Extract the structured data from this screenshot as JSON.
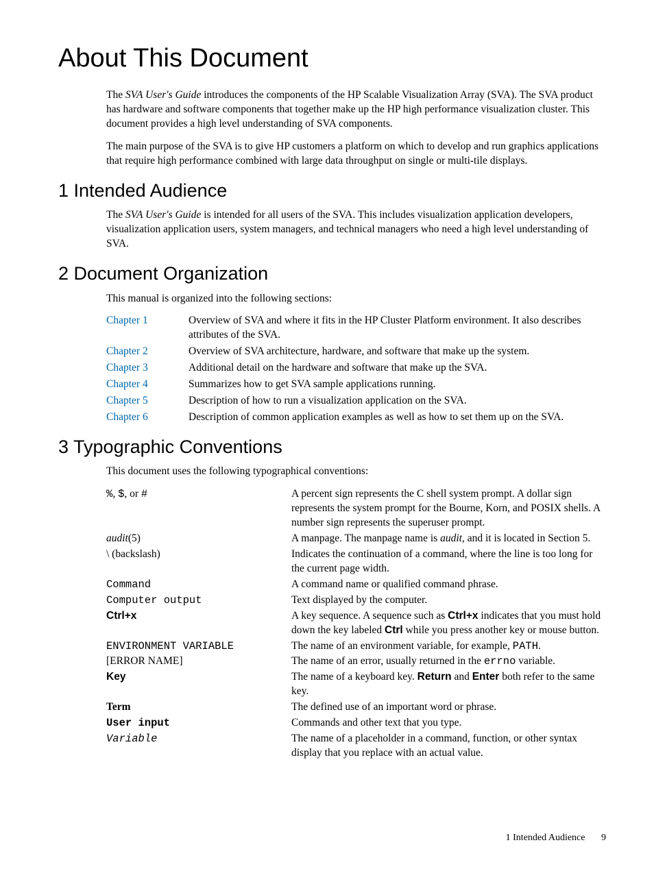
{
  "page": {
    "title": "About This Document",
    "intro_p1_pre": "The ",
    "intro_p1_em": "SVA User's Guide",
    "intro_p1_post": " introduces the components of the HP Scalable Visualization Array (SVA). The SVA product has hardware and software components that together make up the HP high performance visualization cluster. This document provides a high level understanding of SVA components.",
    "intro_p2": "The main purpose of the SVA is to give HP customers a platform on which to develop and run graphics applications that require high performance combined with large data throughput on single or multi-tile displays."
  },
  "sections": {
    "s1": {
      "heading": "1  Intended Audience",
      "p1_pre": "The ",
      "p1_em": "SVA User's Guide",
      "p1_post": " is intended for all users of the SVA. This includes visualization application developers, visualization application users, system managers, and technical managers who need a high level understanding of SVA."
    },
    "s2": {
      "heading": "2  Document Organization",
      "intro": "This manual is organized into the following sections:",
      "chapters": [
        {
          "label": "Chapter 1",
          "desc": "Overview of SVA and where it fits in the HP Cluster Platform environment. It also describes attributes of the SVA."
        },
        {
          "label": "Chapter 2",
          "desc": "Overview of SVA architecture, hardware, and software that make up the system."
        },
        {
          "label": "Chapter 3",
          "desc": "Additional detail on the hardware and software that make up the SVA."
        },
        {
          "label": "Chapter 4",
          "desc": "Summarizes how to get SVA sample applications running."
        },
        {
          "label": "Chapter 5",
          "desc": "Description of how to run a visualization application on the SVA."
        },
        {
          "label": "Chapter 6",
          "desc": "Description of common application examples as well as how to set them up on the SVA."
        }
      ]
    },
    "s3": {
      "heading": "3  Typographic Conventions",
      "intro": "This document uses the following typographical conventions:",
      "rows": {
        "percent": {
          "t1": "%",
          "t2": ", ",
          "t3": "$",
          "t4": ", or ",
          "t5": "#",
          "desc": "A percent sign represents the C shell system prompt. A dollar sign represents the system prompt for the Bourne, Korn, and POSIX shells. A number sign represents the superuser prompt."
        },
        "audit": {
          "t1": "audit",
          "t2": "(5)",
          "d1": "A manpage. The manpage name is ",
          "d2": "audit",
          "d3": ", and it is located in Section 5."
        },
        "backslash": {
          "term": "\\ (backslash)",
          "desc": "Indicates the continuation of a command, where the line is too long for the current page width."
        },
        "command": {
          "term": "Command",
          "desc": "A command name or qualified command phrase."
        },
        "output": {
          "term": "Computer output",
          "desc": "Text displayed by the computer."
        },
        "ctrlx": {
          "term": "Ctrl+x",
          "d1": "A key sequence. A sequence such as ",
          "d2": "Ctrl+x",
          "d3": " indicates that you must hold down the key labeled ",
          "d4": "Ctrl",
          "d5": " while you press another key or mouse button."
        },
        "env": {
          "term": "ENVIRONMENT VARIABLE",
          "d1": "The name of an environment variable, for example, ",
          "d2": "PATH",
          "d3": "."
        },
        "error": {
          "term": "[ERROR NAME]",
          "d1": "The name of an error, usually returned in the ",
          "d2": "errno",
          "d3": " variable."
        },
        "key": {
          "term": "Key",
          "d1": "The name of a keyboard key. ",
          "d2": "Return",
          "d3": " and ",
          "d4": "Enter",
          "d5": " both refer to the same key."
        },
        "term": {
          "term": "Term",
          "desc": "The defined use of an important word or phrase."
        },
        "input": {
          "term": "User input",
          "desc": "Commands and other text that you type."
        },
        "variable": {
          "term": "Variable",
          "desc": "The name of a placeholder in a command, function, or other syntax display that you replace with an actual value."
        }
      }
    }
  },
  "footer": {
    "label": "1 Intended Audience",
    "page_no": "9"
  },
  "colors": {
    "link": "#0066aa",
    "text": "#000000",
    "bg": "#ffffff"
  }
}
